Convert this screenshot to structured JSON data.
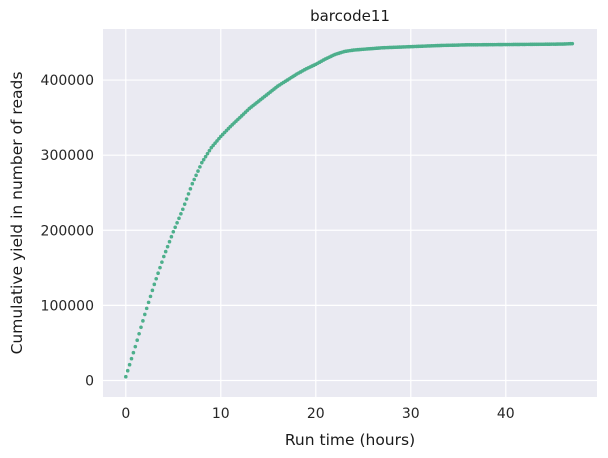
{
  "chart_data": {
    "type": "scatter",
    "title": "barcode11",
    "xlabel": "Run time (hours)",
    "ylabel": "Cumulative yield in number of reads",
    "xlim": [
      -2.4,
      49.6
    ],
    "ylim": [
      -22000,
      468000
    ],
    "xticks": [
      0,
      10,
      20,
      30,
      40
    ],
    "yticks": [
      0,
      100000,
      200000,
      300000,
      400000
    ],
    "grid": true,
    "background": "#eaeaf2",
    "grid_color": "#ffffff",
    "marker_color": "#4daf8c",
    "series": [
      {
        "points": [
          [
            0,
            5000
          ],
          [
            1,
            45000
          ],
          [
            2,
            88000
          ],
          [
            3,
            128000
          ],
          [
            4,
            165000
          ],
          [
            5,
            198000
          ],
          [
            6,
            228000
          ],
          [
            7,
            262000
          ],
          [
            8,
            290000
          ],
          [
            9,
            310000
          ],
          [
            10,
            325000
          ],
          [
            11,
            338000
          ],
          [
            12,
            350000
          ],
          [
            13,
            362000
          ],
          [
            14,
            372000
          ],
          [
            15,
            382000
          ],
          [
            16,
            392000
          ],
          [
            17,
            400000
          ],
          [
            18,
            408000
          ],
          [
            19,
            415000
          ],
          [
            20,
            421000
          ],
          [
            21,
            428000
          ],
          [
            22,
            434000
          ],
          [
            23,
            438000
          ],
          [
            24,
            440000
          ],
          [
            25,
            441000
          ],
          [
            26,
            442000
          ],
          [
            27,
            443000
          ],
          [
            28,
            443500
          ],
          [
            29,
            444000
          ],
          [
            30,
            444500
          ],
          [
            31,
            445000
          ],
          [
            32,
            445500
          ],
          [
            33,
            446000
          ],
          [
            34,
            446300
          ],
          [
            35,
            446600
          ],
          [
            36,
            447000
          ],
          [
            37,
            447000
          ],
          [
            38,
            447100
          ],
          [
            39,
            447200
          ],
          [
            40,
            447300
          ],
          [
            41,
            447400
          ],
          [
            42,
            447500
          ],
          [
            43,
            447600
          ],
          [
            44,
            447700
          ],
          [
            45,
            447800
          ],
          [
            46,
            448000
          ],
          [
            47,
            448500
          ]
        ]
      }
    ]
  }
}
